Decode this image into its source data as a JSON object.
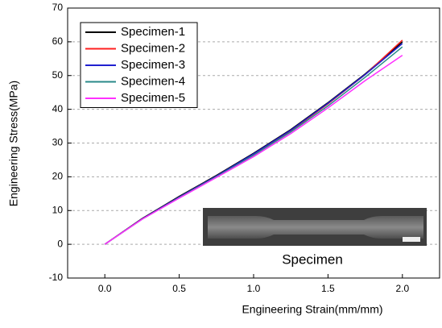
{
  "chart_data": {
    "type": "line",
    "x_label": "Engineering Strain(mm/mm)",
    "y_label": "Engineering Stress(MPa)",
    "annotation": "Specimen",
    "x": [
      0,
      0.25,
      0.5,
      0.75,
      1.0,
      1.25,
      1.5,
      1.75,
      2.0
    ],
    "series": [
      {
        "name": "Specimen-1",
        "color": "#000000",
        "values": [
          0,
          7.6,
          14.2,
          20.4,
          27.0,
          34.0,
          42.0,
          50.5,
          60.0
        ]
      },
      {
        "name": "Specimen-2",
        "color": "#ff2020",
        "values": [
          0,
          7.5,
          14.0,
          20.2,
          26.7,
          33.6,
          41.6,
          50.3,
          60.5
        ]
      },
      {
        "name": "Specimen-3",
        "color": "#2020d0",
        "values": [
          0,
          7.5,
          14.0,
          20.2,
          26.8,
          33.8,
          41.8,
          50.3,
          59.5
        ]
      },
      {
        "name": "Specimen-4",
        "color": "#2a8a8a",
        "values": [
          0,
          7.4,
          13.8,
          20.0,
          26.4,
          33.3,
          41.0,
          49.5,
          58.5
        ]
      },
      {
        "name": "Specimen-5",
        "color": "#ff30ff",
        "values": [
          0,
          7.4,
          13.7,
          19.8,
          26.0,
          32.8,
          40.4,
          48.5,
          56.0
        ]
      }
    ],
    "xlim": [
      -0.25,
      2.25
    ],
    "ylim": [
      -10,
      70
    ],
    "xticks": [
      {
        "value": 0,
        "label": "0.0"
      },
      {
        "value": 0.5,
        "label": "0.5"
      },
      {
        "value": 1.0,
        "label": "1.0"
      },
      {
        "value": 1.5,
        "label": "1.5"
      },
      {
        "value": 2.0,
        "label": "2.0"
      }
    ],
    "yticks": [
      -10,
      0,
      10,
      20,
      30,
      40,
      50,
      60,
      70
    ],
    "grid": true,
    "legend": "upper left"
  }
}
